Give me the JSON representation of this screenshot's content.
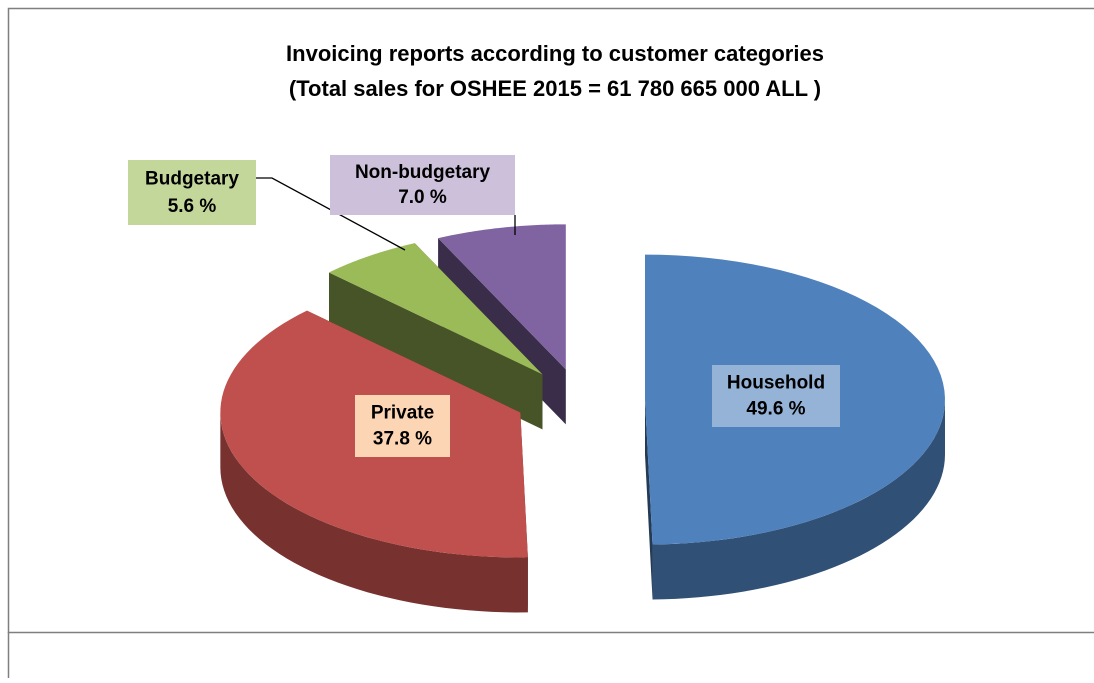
{
  "chart_data": {
    "type": "pie3d",
    "title": "Invoicing reports according to customer categories",
    "subtitle": "(Total sales for OSHEE 2015 = 61 780 665 000  ALL )",
    "categories": [
      "Household",
      "Private",
      "Budgetary",
      "Non-budgetary"
    ],
    "values": [
      49.6,
      37.8,
      5.6,
      7.0
    ],
    "value_labels": [
      "49.6 %",
      "37.8 %",
      "5.6 %",
      "7.0 %"
    ],
    "colors": [
      "#4f81bd",
      "#c0504d",
      "#9bbb59",
      "#8064a2"
    ],
    "label_colors": [
      "#95b3d7",
      "#fcd5b4",
      "#c4d79b",
      "#ccc0da"
    ]
  }
}
